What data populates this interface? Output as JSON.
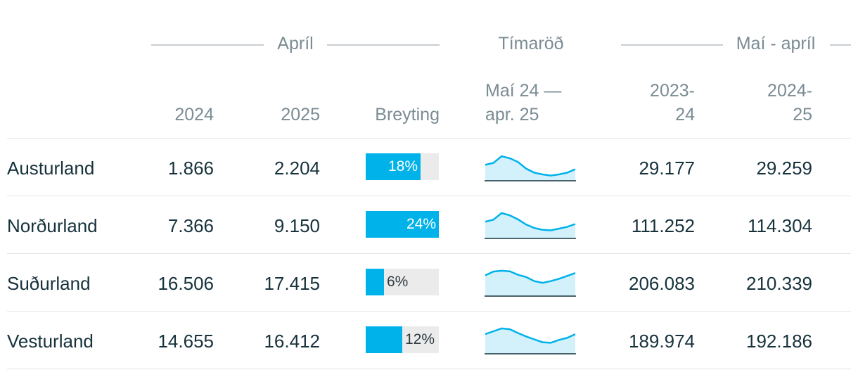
{
  "header": {
    "group_april": "Apríl",
    "group_timeseries": "Tímaröð",
    "group_period": "Maí - apríl",
    "col_2024": "2024",
    "col_2025": "2025",
    "col_change": "Breyting",
    "col_ts_line1": "Maí 24 —",
    "col_ts_line2": "apr. 25",
    "col_p1_line1": "2023-",
    "col_p1_line2": "24",
    "col_p2_line1": "2024-",
    "col_p2_line2": "25"
  },
  "rows": [
    {
      "region": "Austurland",
      "v2024": "1.866",
      "v2025": "2.204",
      "change_label": "18%",
      "change_pct": 18,
      "p2324": "29.177",
      "p2425": "29.259"
    },
    {
      "region": "Norðurland",
      "v2024": "7.366",
      "v2025": "9.150",
      "change_label": "24%",
      "change_pct": 24,
      "p2324": "111.252",
      "p2425": "114.304"
    },
    {
      "region": "Suðurland",
      "v2024": "16.506",
      "v2025": "17.415",
      "change_label": "6%",
      "change_pct": 6,
      "p2324": "206.083",
      "p2425": "210.339"
    },
    {
      "region": "Vesturland",
      "v2024": "14.655",
      "v2025": "16.412",
      "change_label": "12%",
      "change_pct": 12,
      "p2324": "189.974",
      "p2425": "192.186"
    }
  ],
  "colors": {
    "bar": "#00b2ea",
    "bar_bg": "#ebebeb",
    "spark_line": "#00b2ea",
    "spark_fill": "#d2f1fb"
  },
  "chart_data": {
    "type": "table",
    "change_scale_max_pct": 24,
    "sparklines": [
      {
        "region": "Austurland",
        "values": [
          0.55,
          0.62,
          0.85,
          0.78,
          0.65,
          0.42,
          0.28,
          0.22,
          0.18,
          0.22,
          0.28,
          0.4
        ]
      },
      {
        "region": "Norðurland",
        "values": [
          0.58,
          0.65,
          0.88,
          0.8,
          0.66,
          0.48,
          0.36,
          0.3,
          0.28,
          0.34,
          0.4,
          0.5
        ]
      },
      {
        "region": "Suðurland",
        "values": [
          0.72,
          0.85,
          0.88,
          0.86,
          0.74,
          0.66,
          0.52,
          0.46,
          0.52,
          0.6,
          0.7,
          0.8
        ]
      },
      {
        "region": "Vesturland",
        "values": [
          0.68,
          0.78,
          0.88,
          0.85,
          0.72,
          0.6,
          0.5,
          0.4,
          0.38,
          0.48,
          0.55,
          0.68
        ]
      }
    ]
  }
}
